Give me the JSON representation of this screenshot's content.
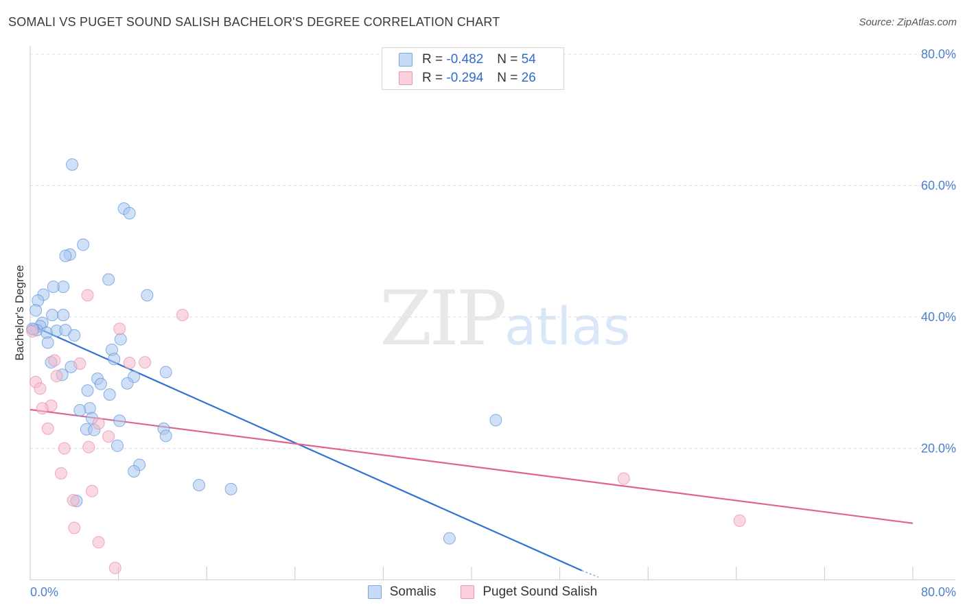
{
  "header": {
    "title": "SOMALI VS PUGET SOUND SALISH BACHELOR'S DEGREE CORRELATION CHART",
    "source": "Source: ZipAtlas.com"
  },
  "legend": {
    "rows": [
      {
        "r_label": "R = ",
        "r_value": "-0.482",
        "n_label": "N = ",
        "n_value": "54",
        "color": "#a9c8f0"
      },
      {
        "r_label": "R = ",
        "r_value": "-0.294",
        "n_label": "N = ",
        "n_value": "26",
        "color": "#f5b8cb"
      }
    ]
  },
  "bottom_legend": {
    "items": [
      {
        "label": "Somalis",
        "color": "#a9c8f0"
      },
      {
        "label": "Puget Sound Salish",
        "color": "#f5b8cb"
      }
    ]
  },
  "watermark": {
    "zip": "ZIP",
    "atlas": "atlas"
  },
  "chart_data": {
    "type": "scatter",
    "title": "SOMALI VS PUGET SOUND SALISH BACHELOR'S DEGREE CORRELATION CHART",
    "xlabel": "",
    "ylabel": "Bachelor's Degree",
    "xlim": [
      0,
      80
    ],
    "ylim": [
      0,
      80
    ],
    "x_tick_labels": [
      "0.0%",
      "80.0%"
    ],
    "y_tick_labels": [
      "80.0%",
      "60.0%",
      "40.0%",
      "20.0%"
    ],
    "y_ticks": [
      80,
      60,
      40,
      20
    ],
    "grid": true,
    "series": [
      {
        "name": "Somalis",
        "color": "#5b8fd9",
        "fill": "#a9c8f0",
        "trend_color": "#2f72d4",
        "trend": {
          "x0": 0,
          "y0": 38.8,
          "x1": 50,
          "y1": 1.4,
          "dash_x1": 51.5,
          "dash_y1": 0.4
        },
        "points": [
          [
            3.8,
            63.2
          ],
          [
            8.5,
            56.5
          ],
          [
            9.0,
            55.8
          ],
          [
            4.8,
            51.0
          ],
          [
            3.6,
            49.5
          ],
          [
            3.2,
            49.3
          ],
          [
            7.1,
            45.7
          ],
          [
            1.2,
            43.4
          ],
          [
            3.0,
            44.6
          ],
          [
            2.1,
            44.6
          ],
          [
            0.7,
            42.5
          ],
          [
            10.6,
            43.3
          ],
          [
            0.5,
            41.0
          ],
          [
            1.1,
            39.1
          ],
          [
            0.9,
            38.6
          ],
          [
            2.0,
            40.3
          ],
          [
            3.0,
            40.3
          ],
          [
            0.6,
            38.0
          ],
          [
            1.5,
            37.6
          ],
          [
            2.4,
            37.9
          ],
          [
            3.2,
            38.0
          ],
          [
            4.0,
            37.2
          ],
          [
            1.6,
            36.1
          ],
          [
            0.3,
            38.1
          ],
          [
            8.2,
            36.6
          ],
          [
            7.4,
            35.0
          ],
          [
            7.6,
            33.6
          ],
          [
            1.9,
            33.1
          ],
          [
            3.7,
            32.4
          ],
          [
            12.3,
            31.6
          ],
          [
            2.9,
            31.2
          ],
          [
            6.1,
            30.6
          ],
          [
            9.4,
            30.9
          ],
          [
            6.4,
            29.8
          ],
          [
            8.8,
            29.9
          ],
          [
            5.2,
            28.8
          ],
          [
            7.2,
            28.2
          ],
          [
            5.4,
            26.1
          ],
          [
            4.5,
            25.8
          ],
          [
            5.6,
            24.6
          ],
          [
            8.1,
            24.2
          ],
          [
            12.1,
            23.0
          ],
          [
            5.1,
            22.9
          ],
          [
            5.8,
            22.8
          ],
          [
            12.3,
            21.9
          ],
          [
            7.9,
            20.4
          ],
          [
            9.9,
            17.5
          ],
          [
            9.4,
            16.5
          ],
          [
            15.3,
            14.4
          ],
          [
            18.2,
            13.8
          ],
          [
            42.2,
            24.3
          ],
          [
            4.2,
            12.0
          ],
          [
            38.0,
            6.3
          ],
          [
            0.2,
            38.2
          ]
        ]
      },
      {
        "name": "Puget Sound Salish",
        "color": "#e98aa7",
        "fill": "#f5b8cb",
        "trend_color": "#e0628e",
        "trend": {
          "x0": 0,
          "y0": 25.9,
          "x1": 80,
          "y1": 8.6
        },
        "points": [
          [
            0.2,
            37.8
          ],
          [
            5.2,
            43.3
          ],
          [
            8.1,
            38.2
          ],
          [
            13.8,
            40.3
          ],
          [
            2.2,
            33.4
          ],
          [
            10.4,
            33.1
          ],
          [
            9.0,
            33.0
          ],
          [
            4.5,
            32.9
          ],
          [
            2.4,
            31.0
          ],
          [
            0.5,
            30.1
          ],
          [
            0.9,
            29.1
          ],
          [
            1.9,
            26.5
          ],
          [
            1.1,
            26.1
          ],
          [
            1.6,
            23.0
          ],
          [
            6.2,
            23.8
          ],
          [
            7.1,
            21.8
          ],
          [
            3.1,
            20.0
          ],
          [
            5.3,
            20.2
          ],
          [
            2.8,
            16.2
          ],
          [
            5.6,
            13.5
          ],
          [
            3.9,
            12.1
          ],
          [
            4.0,
            7.9
          ],
          [
            6.2,
            5.7
          ],
          [
            7.7,
            1.8
          ],
          [
            53.8,
            15.4
          ],
          [
            64.3,
            9.0
          ]
        ]
      }
    ]
  }
}
